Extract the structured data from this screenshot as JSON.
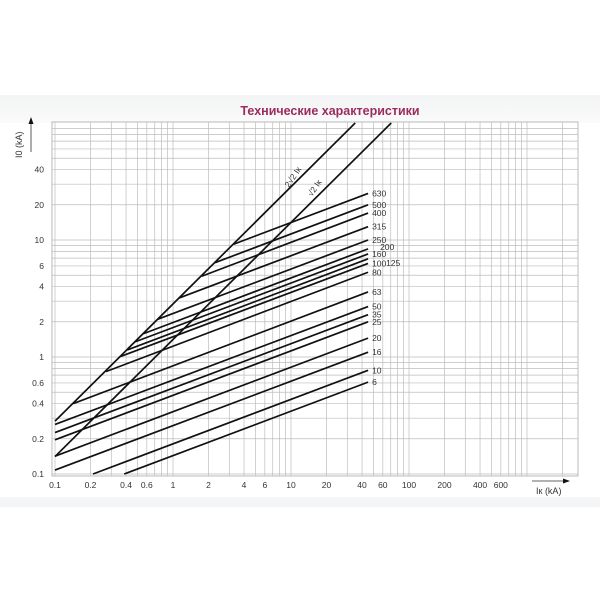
{
  "header": {
    "title": "Технические характеристики"
  },
  "chart_data": {
    "type": "line",
    "title": "Технические характеристики",
    "xlabel": "Iк (kA)",
    "ylabel": "I0 (kA)",
    "xscale": "log",
    "yscale": "log",
    "xlim": [
      0.1,
      2500
    ],
    "ylim": [
      0.1,
      100
    ],
    "grid": true,
    "x_ticks": [
      "0.1",
      "0.2",
      "0.4",
      "0.6",
      "1",
      "2",
      "4",
      "6",
      "10",
      "20",
      "40",
      "60",
      "100",
      "200",
      "400",
      "600"
    ],
    "y_ticks": [
      "0.1",
      "0.2",
      "0.4",
      "0.6",
      "1",
      "2",
      "4",
      "6",
      "10",
      "20",
      "40"
    ],
    "reference_lines": [
      {
        "name": "2√2 Iк",
        "points": [
          [
            0.1,
            0.283
          ],
          [
            35,
            100
          ]
        ]
      },
      {
        "name": "√2 Iк",
        "points": [
          [
            0.1,
            0.141
          ],
          [
            70.7,
            100
          ]
        ]
      }
    ],
    "series": [
      {
        "name": "630",
        "points": [
          [
            3.26,
            9.2
          ],
          [
            45,
            25
          ]
        ]
      },
      {
        "name": "500",
        "points": [
          [
            2.27,
            6.4
          ],
          [
            45,
            20
          ]
        ]
      },
      {
        "name": "400",
        "points": [
          [
            1.75,
            4.9
          ],
          [
            45,
            17
          ]
        ]
      },
      {
        "name": "315",
        "points": [
          [
            1.13,
            3.2
          ],
          [
            45,
            13
          ]
        ]
      },
      {
        "name": "250",
        "points": [
          [
            0.74,
            2.1
          ],
          [
            45,
            10
          ]
        ]
      },
      {
        "name": "200",
        "points": [
          [
            0.56,
            1.58
          ],
          [
            45,
            8.4
          ]
        ]
      },
      {
        "name": "160",
        "points": [
          [
            0.48,
            1.35
          ],
          [
            45,
            7.6
          ]
        ]
      },
      {
        "name": "125",
        "points": [
          [
            0.41,
            1.15
          ],
          [
            45,
            6.9
          ]
        ]
      },
      {
        "name": "100",
        "points": [
          [
            0.35,
            1.0
          ],
          [
            45,
            6.3
          ]
        ]
      },
      {
        "name": "80",
        "points": [
          [
            0.27,
            0.75
          ],
          [
            45,
            5.3
          ]
        ]
      },
      {
        "name": "63",
        "points": [
          [
            0.143,
            0.4
          ],
          [
            45,
            3.6
          ]
        ]
      },
      {
        "name": "50",
        "points": [
          [
            0.1,
            0.265
          ],
          [
            45,
            2.7
          ]
        ]
      },
      {
        "name": "35",
        "points": [
          [
            0.1,
            0.226
          ],
          [
            45,
            2.3
          ]
        ]
      },
      {
        "name": "25",
        "points": [
          [
            0.1,
            0.196
          ],
          [
            45,
            2.0
          ]
        ]
      },
      {
        "name": "20",
        "points": [
          [
            0.1,
            0.142
          ],
          [
            45,
            1.45
          ]
        ]
      },
      {
        "name": "16",
        "points": [
          [
            0.1,
            0.108
          ],
          [
            45,
            1.1
          ]
        ]
      },
      {
        "name": "10",
        "points": [
          [
            0.21,
            0.1
          ],
          [
            45,
            0.77
          ]
        ]
      },
      {
        "name": "6",
        "points": [
          [
            0.386,
            0.1
          ],
          [
            45,
            0.61
          ]
        ]
      }
    ]
  }
}
